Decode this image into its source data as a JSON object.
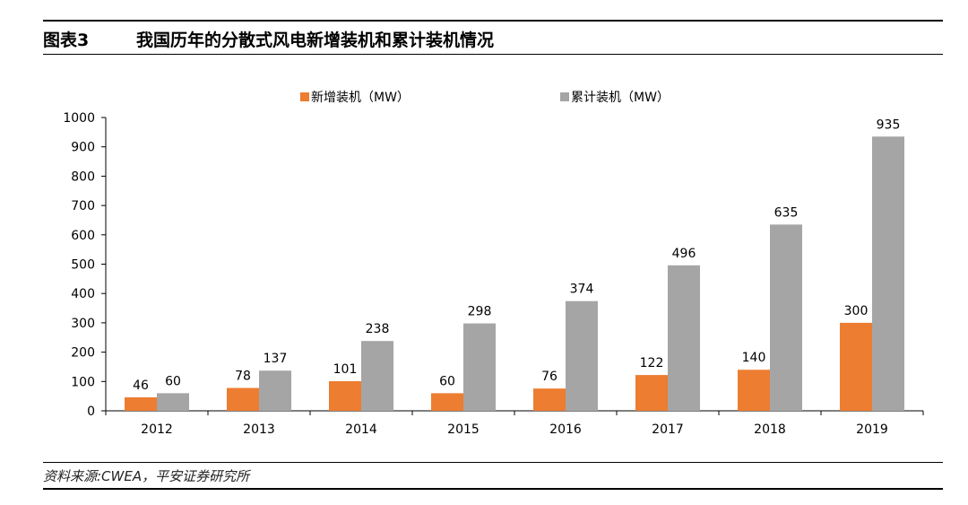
{
  "header": {
    "label": "图表3",
    "title": "我国历年的分散式风电新增装机和累计装机情况"
  },
  "footer": {
    "source": "资料来源:CWEA，平安证券研究所"
  },
  "chart_data": {
    "type": "bar",
    "categories": [
      "2012",
      "2013",
      "2014",
      "2015",
      "2016",
      "2017",
      "2018",
      "2019"
    ],
    "series": [
      {
        "name": "新增装机（MW）",
        "color": "#ED7D31",
        "values": [
          46,
          78,
          101,
          60,
          76,
          122,
          140,
          300
        ]
      },
      {
        "name": "累计装机（MW）",
        "color": "#A5A5A5",
        "values": [
          60,
          137,
          238,
          298,
          374,
          496,
          635,
          935
        ]
      }
    ],
    "ylim": [
      0,
      1000
    ],
    "yticks": [
      0,
      100,
      200,
      300,
      400,
      500,
      600,
      700,
      800,
      900,
      1000
    ],
    "legend_position": "top-center",
    "grid": false
  }
}
